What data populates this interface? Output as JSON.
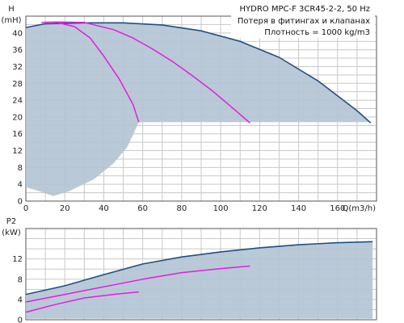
{
  "header": {
    "title": "HYDRO MPC-F 3CR45-2-2, 50 Hz",
    "note1": "Потеря в фитингах и клапанах",
    "note2": "Плотность = 1000 kg/m3"
  },
  "colors": {
    "area_fill": "#b4c4d4",
    "envelope": "#1f4f82",
    "curve": "#e21de0",
    "grid": "#c8c8c8"
  },
  "chart_data": [
    {
      "type": "line",
      "title": "",
      "xlabel": "Q(m3/h)",
      "ylabel": "H",
      "yunit": "(mH)",
      "xlim": [
        0,
        180
      ],
      "ylim": [
        0,
        44
      ],
      "xticks": [
        0,
        20,
        40,
        60,
        80,
        100,
        120,
        140,
        160
      ],
      "yticks": [
        0,
        4,
        8,
        12,
        16,
        20,
        24,
        28,
        32,
        36,
        40
      ],
      "grid": true,
      "operating_area": {
        "upper": [
          [
            0,
            41.3
          ],
          [
            10,
            42.2
          ],
          [
            30,
            42.4
          ],
          [
            50,
            42.4
          ],
          [
            70,
            41.9
          ],
          [
            90,
            40.5
          ],
          [
            110,
            38.0
          ],
          [
            130,
            34.2
          ],
          [
            150,
            28.6
          ],
          [
            170,
            21.5
          ],
          [
            177,
            18.6
          ]
        ],
        "lower": [
          [
            0,
            3.3
          ],
          [
            8,
            2.2
          ],
          [
            14,
            1.2
          ],
          [
            22,
            2.3
          ],
          [
            35,
            5.2
          ],
          [
            45,
            9.0
          ],
          [
            52,
            12.8
          ],
          [
            58,
            18.8
          ],
          [
            177,
            18.8
          ]
        ]
      },
      "series": [
        {
          "name": "",
          "x": [
            0,
            10,
            30,
            50,
            70,
            90,
            110,
            130,
            150,
            170,
            177
          ],
          "y": [
            41.3,
            42.2,
            42.4,
            42.4,
            41.9,
            40.5,
            38.0,
            34.2,
            28.6,
            21.5,
            18.6
          ]
        },
        {
          "name": "",
          "x": [
            8,
            15,
            25,
            33,
            40,
            48,
            55,
            58
          ],
          "y": [
            42.5,
            42.6,
            41.5,
            38.8,
            34.5,
            29.0,
            23.0,
            18.8
          ]
        },
        {
          "name": "",
          "x": [
            15,
            30,
            45,
            55,
            65,
            75,
            85,
            95,
            105,
            115
          ],
          "y": [
            42.6,
            42.5,
            40.8,
            38.8,
            36.2,
            33.3,
            30.0,
            26.5,
            22.6,
            18.6
          ]
        }
      ]
    },
    {
      "type": "line",
      "title": "",
      "xlabel": "",
      "ylabel": "P2",
      "yunit": "(kW)",
      "xlim": [
        0,
        180
      ],
      "ylim": [
        0,
        18
      ],
      "yticks": [
        0,
        4,
        8,
        12
      ],
      "grid": true,
      "operating_area": {
        "upper": [
          [
            0,
            5.0
          ],
          [
            20,
            6.7
          ],
          [
            40,
            8.9
          ],
          [
            60,
            11.0
          ],
          [
            80,
            12.4
          ],
          [
            100,
            13.4
          ],
          [
            120,
            14.2
          ],
          [
            140,
            14.8
          ],
          [
            160,
            15.2
          ],
          [
            178,
            15.4
          ]
        ],
        "lower": [
          [
            0,
            0.2
          ],
          [
            178,
            0.2
          ]
        ]
      },
      "series": [
        {
          "name": "",
          "x": [
            0,
            20,
            40,
            60,
            80,
            100,
            120,
            140,
            160,
            178
          ],
          "y": [
            5.0,
            6.7,
            8.9,
            11.0,
            12.4,
            13.4,
            14.2,
            14.8,
            15.2,
            15.4
          ]
        },
        {
          "name": "",
          "x": [
            0,
            20,
            40,
            60,
            80,
            100,
            115
          ],
          "y": [
            3.5,
            5.0,
            6.5,
            8.0,
            9.3,
            10.1,
            10.6
          ]
        },
        {
          "name": "",
          "x": [
            0,
            15,
            30,
            45,
            58
          ],
          "y": [
            1.5,
            3.0,
            4.3,
            5.0,
            5.5
          ]
        }
      ]
    }
  ]
}
